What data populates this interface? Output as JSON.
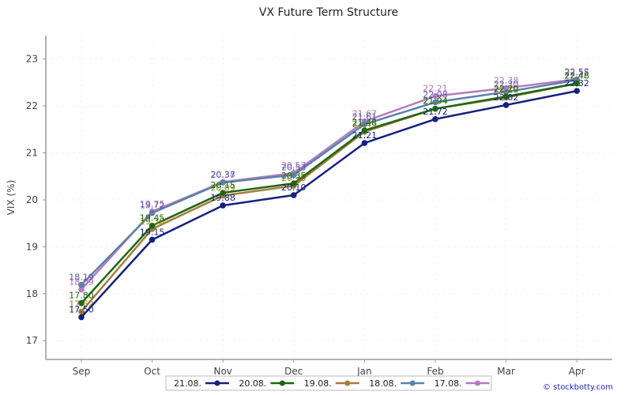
{
  "chart_data": {
    "type": "line",
    "title": "VX Future Term Structure",
    "xlabel": "",
    "ylabel": "VIX (%)",
    "categories": [
      "Sep",
      "Oct",
      "Nov",
      "Dec",
      "Jan",
      "Feb",
      "Mar",
      "Apr"
    ],
    "ylim": [
      16.6,
      23.5
    ],
    "yticks": [
      17,
      18,
      19,
      20,
      21,
      22,
      23
    ],
    "grid": true,
    "legend_position": "bottom",
    "series": [
      {
        "name": "21.08.",
        "color": "#15217f",
        "label_color": "#15217f",
        "values": [
          17.5,
          19.15,
          19.88,
          20.1,
          21.21,
          21.72,
          22.02,
          22.32
        ]
      },
      {
        "name": "20.08.",
        "color": "#1e6610",
        "label_color": "#1e6610",
        "values": [
          17.8,
          19.45,
          20.15,
          20.35,
          21.48,
          21.94,
          22.2,
          22.48
        ]
      },
      {
        "name": "19.08.",
        "color": "#a67d3a",
        "label_color": "#8a8a1a",
        "values": [
          17.62,
          19.38,
          20.09,
          20.3,
          21.45,
          21.94,
          22.18,
          22.48
        ]
      },
      {
        "name": "18.08.",
        "color": "#5a82aa",
        "label_color": "#5a5aaa",
        "values": [
          18.19,
          19.72,
          20.37,
          20.53,
          21.61,
          22.08,
          22.3,
          22.55
        ]
      },
      {
        "name": "17.08.",
        "color": "#b57ac2",
        "label_color": "#b070c0",
        "values": [
          18.09,
          19.75,
          20.38,
          20.57,
          21.67,
          22.21,
          22.38,
          22.57
        ]
      }
    ]
  },
  "credit": "© stockbotty.com"
}
